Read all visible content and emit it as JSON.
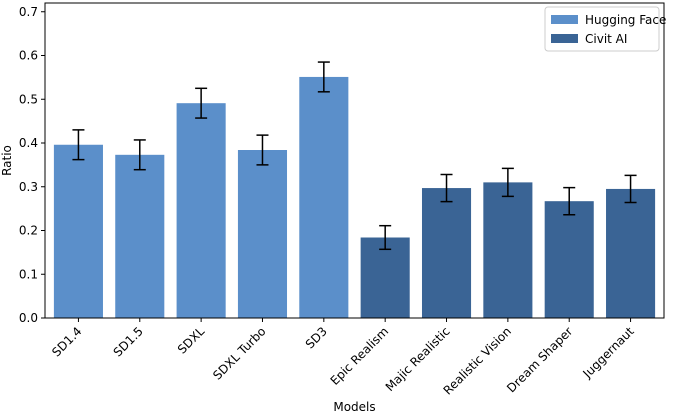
{
  "chart_data": {
    "type": "bar",
    "title": "",
    "xlabel": "Models",
    "ylabel": "Ratio",
    "ylim": [
      0,
      0.72
    ],
    "yticks": [
      0.0,
      0.1,
      0.2,
      0.3,
      0.4,
      0.5,
      0.6,
      0.7
    ],
    "ytick_labels": [
      "0.0",
      "0.1",
      "0.2",
      "0.3",
      "0.4",
      "0.5",
      "0.6",
      "0.7"
    ],
    "categories": [
      "SD1.4",
      "SD1.5",
      "SDXL",
      "SDXL Turbo",
      "SD3",
      "Epic Realism",
      "Majic Realistic",
      "Realistic Vision",
      "Dream Shaper",
      "Juggernaut"
    ],
    "values": [
      0.396,
      0.373,
      0.491,
      0.384,
      0.551,
      0.184,
      0.297,
      0.31,
      0.267,
      0.295
    ],
    "errors": [
      0.034,
      0.034,
      0.034,
      0.034,
      0.034,
      0.027,
      0.031,
      0.032,
      0.031,
      0.031
    ],
    "groups": [
      0,
      0,
      0,
      0,
      0,
      1,
      1,
      1,
      1,
      1
    ],
    "series": [
      {
        "name": "Hugging Face",
        "color": "#5b8fca"
      },
      {
        "name": "Civit AI",
        "color": "#3a6495"
      }
    ],
    "legend_position": "top-right",
    "grid": false
  }
}
